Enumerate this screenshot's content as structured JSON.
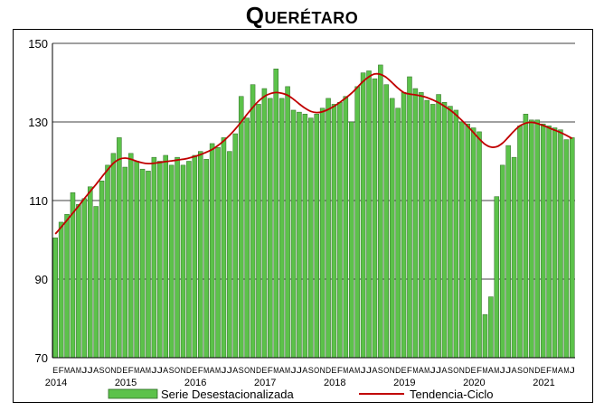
{
  "chart_data": {
    "type": "bar",
    "title": "Querétaro",
    "xlabel": "",
    "ylabel": "",
    "ylim": [
      70,
      150
    ],
    "yticks": [
      70,
      90,
      110,
      130,
      150
    ],
    "grid": "horizontal",
    "legend_placement": "bottom",
    "month_labels": [
      "E",
      "F",
      "M",
      "A",
      "M",
      "J",
      "J",
      "A",
      "S",
      "O",
      "N",
      "D"
    ],
    "year_labels": [
      "2014",
      "2015",
      "2016",
      "2017",
      "2018",
      "2019",
      "2020",
      "2021"
    ],
    "start": "2014-01",
    "series": [
      {
        "name": "Serie Desestacionalizada",
        "type": "bar",
        "color": "#5CC24A",
        "values": [
          100.5,
          104.5,
          106.5,
          112.0,
          109.0,
          110.5,
          113.5,
          108.5,
          115.0,
          119.0,
          122.0,
          126.0,
          118.5,
          122.0,
          120.0,
          118.0,
          117.5,
          121.0,
          120.0,
          121.5,
          119.0,
          121.0,
          119.0,
          120.0,
          121.5,
          122.5,
          120.5,
          124.5,
          123.5,
          126.0,
          122.5,
          127.0,
          136.5,
          131.0,
          139.5,
          134.5,
          138.5,
          136.0,
          143.5,
          136.0,
          139.0,
          133.0,
          132.5,
          132.0,
          131.0,
          132.0,
          133.5,
          136.0,
          134.5,
          135.0,
          136.5,
          130.0,
          139.0,
          142.5,
          143.0,
          141.0,
          144.5,
          139.5,
          136.0,
          133.5,
          137.5,
          141.5,
          138.5,
          137.5,
          135.5,
          134.5,
          137.0,
          135.0,
          134.0,
          133.0,
          130.0,
          129.5,
          128.5,
          127.5,
          81.0,
          85.5,
          111.0,
          119.0,
          124.0,
          121.0,
          129.0,
          132.0,
          130.5,
          130.5,
          129.5,
          129.0,
          128.5,
          128.0,
          125.5,
          126.0
        ]
      },
      {
        "name": "Tendencia-Ciclo",
        "type": "line",
        "color": "#C00000",
        "values": [
          101.5,
          103.2,
          105.0,
          106.8,
          108.6,
          110.5,
          112.3,
          114.1,
          116.0,
          117.8,
          119.5,
          120.5,
          120.8,
          120.5,
          120.0,
          119.6,
          119.4,
          119.5,
          119.7,
          119.9,
          120.1,
          120.3,
          120.5,
          120.8,
          121.2,
          121.7,
          122.3,
          123.0,
          124.0,
          125.2,
          126.6,
          128.2,
          130.0,
          131.9,
          133.7,
          135.3,
          136.5,
          137.2,
          137.5,
          137.3,
          136.8,
          135.8,
          134.6,
          133.5,
          132.7,
          132.4,
          132.6,
          133.2,
          134.0,
          135.0,
          136.1,
          137.3,
          138.8,
          140.3,
          141.5,
          142.2,
          142.1,
          141.3,
          140.0,
          138.6,
          137.5,
          137.1,
          136.9,
          136.6,
          136.2,
          135.6,
          134.9,
          134.0,
          133.0,
          131.8,
          130.4,
          128.9,
          127.3,
          125.7,
          124.3,
          123.6,
          123.7,
          124.6,
          126.1,
          127.7,
          129.0,
          129.7,
          129.9,
          129.6,
          129.1,
          128.5,
          127.9,
          127.3,
          126.6,
          125.8
        ]
      }
    ]
  }
}
